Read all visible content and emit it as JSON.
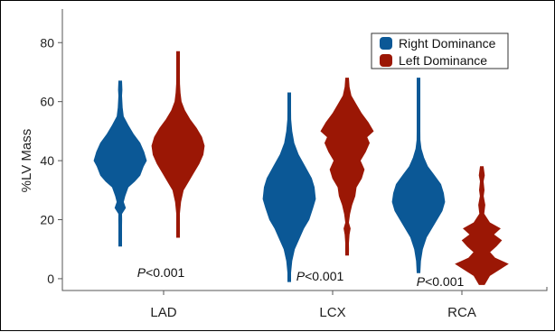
{
  "chart_data": {
    "type": "violin",
    "title": "",
    "xlabel": "",
    "ylabel": "%LV Mass",
    "ylim": [
      -4,
      92
    ],
    "yticks": [
      0,
      20,
      40,
      60,
      80
    ],
    "grid": false,
    "legend_position": "top-right",
    "categories": [
      "LAD",
      "LCX",
      "RCA"
    ],
    "series": [
      {
        "name": "Right Dominance",
        "color": "#0b5896",
        "distributions": [
          {
            "category": "LAD",
            "min": 11,
            "max": 67,
            "profile": [
              [
                11,
                0.03
              ],
              [
                14,
                0.05
              ],
              [
                18,
                0.04
              ],
              [
                20,
                0.06
              ],
              [
                22,
                0.05
              ],
              [
                24,
                0.2
              ],
              [
                26,
                0.12
              ],
              [
                28,
                0.18
              ],
              [
                31,
                0.3
              ],
              [
                33,
                0.55
              ],
              [
                35,
                0.75
              ],
              [
                38,
                0.88
              ],
              [
                40,
                1.0
              ],
              [
                43,
                0.9
              ],
              [
                46,
                0.75
              ],
              [
                49,
                0.5
              ],
              [
                52,
                0.3
              ],
              [
                55,
                0.12
              ],
              [
                58,
                0.08
              ],
              [
                62,
                0.05
              ],
              [
                64,
                0.07
              ],
              [
                67,
                0.03
              ]
            ]
          },
          {
            "category": "LCX",
            "min": -1,
            "max": 63,
            "profile": [
              [
                -1,
                0.02
              ],
              [
                2,
                0.05
              ],
              [
                6,
                0.1
              ],
              [
                10,
                0.2
              ],
              [
                14,
                0.4
              ],
              [
                17,
                0.55
              ],
              [
                20,
                0.75
              ],
              [
                24,
                0.9
              ],
              [
                27,
                1.0
              ],
              [
                31,
                0.95
              ],
              [
                34,
                0.85
              ],
              [
                38,
                0.6
              ],
              [
                42,
                0.35
              ],
              [
                46,
                0.18
              ],
              [
                50,
                0.1
              ],
              [
                54,
                0.06
              ],
              [
                57,
                0.04
              ],
              [
                60,
                0.05
              ],
              [
                63,
                0.02
              ]
            ]
          },
          {
            "category": "RCA",
            "min": 2,
            "max": 68,
            "profile": [
              [
                2,
                0.03
              ],
              [
                6,
                0.08
              ],
              [
                10,
                0.15
              ],
              [
                14,
                0.3
              ],
              [
                17,
                0.5
              ],
              [
                20,
                0.7
              ],
              [
                23,
                0.9
              ],
              [
                26,
                1.0
              ],
              [
                29,
                0.95
              ],
              [
                32,
                0.85
              ],
              [
                35,
                0.6
              ],
              [
                38,
                0.35
              ],
              [
                41,
                0.2
              ],
              [
                44,
                0.1
              ],
              [
                47,
                0.06
              ],
              [
                50,
                0.04
              ],
              [
                54,
                0.03
              ],
              [
                58,
                0.05
              ],
              [
                60,
                0.02
              ],
              [
                65,
                0.02
              ],
              [
                68,
                0.03
              ]
            ]
          }
        ]
      },
      {
        "name": "Left Dominance",
        "color": "#9b1705",
        "distributions": [
          {
            "category": "LAD",
            "min": 14,
            "max": 77,
            "profile": [
              [
                14,
                0.02
              ],
              [
                18,
                0.04
              ],
              [
                22,
                0.05
              ],
              [
                26,
                0.1
              ],
              [
                30,
                0.2
              ],
              [
                33,
                0.4
              ],
              [
                36,
                0.6
              ],
              [
                39,
                0.8
              ],
              [
                42,
                0.95
              ],
              [
                45,
                1.0
              ],
              [
                48,
                0.9
              ],
              [
                51,
                0.7
              ],
              [
                54,
                0.45
              ],
              [
                57,
                0.25
              ],
              [
                60,
                0.12
              ],
              [
                63,
                0.08
              ],
              [
                66,
                0.06
              ],
              [
                69,
                0.04
              ],
              [
                72,
                0.03
              ],
              [
                75,
                0.04
              ],
              [
                77,
                0.02
              ]
            ]
          },
          {
            "category": "LCX",
            "min": 8,
            "max": 68,
            "profile": [
              [
                8,
                0.04
              ],
              [
                10,
                0.06
              ],
              [
                12,
                0.03
              ],
              [
                15,
                0.08
              ],
              [
                17,
                0.12
              ],
              [
                19,
                0.05
              ],
              [
                22,
                0.1
              ],
              [
                25,
                0.18
              ],
              [
                28,
                0.3
              ],
              [
                31,
                0.35
              ],
              [
                34,
                0.55
              ],
              [
                37,
                0.65
              ],
              [
                40,
                0.5
              ],
              [
                43,
                0.7
              ],
              [
                46,
                0.85
              ],
              [
                48,
                0.75
              ],
              [
                50,
                1.0
              ],
              [
                53,
                0.8
              ],
              [
                56,
                0.55
              ],
              [
                59,
                0.35
              ],
              [
                62,
                0.15
              ],
              [
                65,
                0.08
              ],
              [
                68,
                0.04
              ]
            ]
          },
          {
            "category": "RCA",
            "min": -2,
            "max": 38,
            "profile": [
              [
                -2,
                0.1
              ],
              [
                1,
                0.3
              ],
              [
                3,
                0.65
              ],
              [
                5,
                1.0
              ],
              [
                7,
                0.5
              ],
              [
                9,
                0.3
              ],
              [
                11,
                0.55
              ],
              [
                13,
                0.75
              ],
              [
                15,
                0.45
              ],
              [
                17,
                0.7
              ],
              [
                19,
                0.3
              ],
              [
                22,
                0.08
              ],
              [
                25,
                0.12
              ],
              [
                28,
                0.06
              ],
              [
                30,
                0.09
              ],
              [
                33,
                0.03
              ],
              [
                35,
                0.1
              ],
              [
                38,
                0.03
              ]
            ]
          }
        ]
      }
    ],
    "annotations": [
      {
        "category": "LAD",
        "text": "P<0.001"
      },
      {
        "category": "LCX",
        "text": "P<0.001"
      },
      {
        "category": "RCA",
        "text": "P<0.001"
      }
    ]
  }
}
